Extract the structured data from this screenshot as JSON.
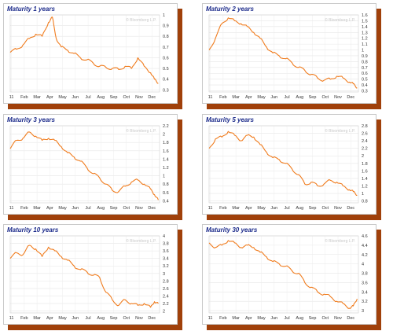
{
  "chart_data": [
    {
      "type": "line",
      "title": "Maturity 1 years",
      "watermark": "© Bloomberg L.P.",
      "color": "#f07c1e",
      "xticks": [
        "11",
        "Feb",
        "Mar",
        "Apr",
        "May",
        "Jun",
        "Jul",
        "Aug",
        "Sep",
        "Oct",
        "Nov",
        "Dec"
      ],
      "yticks": [
        0.3,
        0.4,
        0.5,
        0.6,
        0.7,
        0.8,
        0.9,
        1
      ],
      "ylim": [
        0.28,
        1.0
      ],
      "x": [
        0,
        0.5,
        1,
        1.5,
        2,
        2.5,
        3,
        3.3,
        3.6,
        4,
        4.5,
        5,
        5.5,
        6,
        6.5,
        7,
        7.5,
        8,
        8.5,
        9,
        9.5,
        10,
        10.5,
        11,
        11.3,
        11.6
      ],
      "y": [
        0.65,
        0.68,
        0.72,
        0.78,
        0.82,
        0.8,
        0.93,
        0.98,
        0.78,
        0.7,
        0.67,
        0.64,
        0.6,
        0.58,
        0.55,
        0.52,
        0.51,
        0.5,
        0.49,
        0.52,
        0.5,
        0.6,
        0.52,
        0.46,
        0.4,
        0.36
      ]
    },
    {
      "type": "line",
      "title": "Maturity 2 years",
      "watermark": "© Bloomberg L.P.",
      "color": "#f07c1e",
      "xticks": [
        "11",
        "Feb",
        "Mar",
        "Apr",
        "May",
        "Jun",
        "Jul",
        "Aug",
        "Sep",
        "Oct",
        "Nov",
        "Dec"
      ],
      "yticks": [
        0.3,
        0.4,
        0.5,
        0.6,
        0.7,
        0.8,
        0.9,
        1,
        1.1,
        1.2,
        1.3,
        1.4,
        1.5,
        1.6
      ],
      "ylim": [
        0.28,
        1.6
      ],
      "x": [
        0,
        0.5,
        1,
        1.5,
        2,
        2.5,
        3,
        3.5,
        4,
        4.5,
        5,
        5.5,
        6,
        6.5,
        7,
        7.5,
        8,
        8.5,
        9,
        9.5,
        10,
        10.5,
        11,
        11.3,
        11.6
      ],
      "y": [
        1.0,
        1.2,
        1.45,
        1.55,
        1.5,
        1.45,
        1.4,
        1.3,
        1.2,
        1.05,
        0.95,
        0.9,
        0.85,
        0.78,
        0.7,
        0.65,
        0.58,
        0.52,
        0.48,
        0.5,
        0.55,
        0.52,
        0.45,
        0.42,
        0.35
      ]
    },
    {
      "type": "line",
      "title": "Maturity 3 years",
      "watermark": "© Bloomberg L.P.",
      "color": "#f07c1e",
      "xticks": [
        "11",
        "Feb",
        "Mar",
        "Apr",
        "May",
        "Jun",
        "Jul",
        "Aug",
        "Sep",
        "Oct",
        "Nov",
        "Dec"
      ],
      "yticks": [
        0.4,
        0.6,
        0.8,
        1,
        1.2,
        1.4,
        1.6,
        1.8,
        2,
        2.2
      ],
      "ylim": [
        0.35,
        2.2
      ],
      "x": [
        0,
        0.5,
        1,
        1.5,
        2,
        2.5,
        3,
        3.5,
        4,
        4.5,
        5,
        5.5,
        6,
        6.5,
        7,
        7.5,
        8,
        8.5,
        9,
        9.5,
        10,
        10.5,
        11,
        11.3,
        11.6
      ],
      "y": [
        1.65,
        1.85,
        1.9,
        2.05,
        1.95,
        1.85,
        1.9,
        1.85,
        1.7,
        1.55,
        1.45,
        1.35,
        1.2,
        1.05,
        0.95,
        0.8,
        0.65,
        0.62,
        0.75,
        0.85,
        0.9,
        0.8,
        0.68,
        0.55,
        0.42
      ]
    },
    {
      "type": "line",
      "title": "Maturity 5 years",
      "watermark": "© Bloomberg L.P.",
      "color": "#f07c1e",
      "xticks": [
        "11",
        "Feb",
        "Mar",
        "Apr",
        "May",
        "Jun",
        "Jul",
        "Aug",
        "Sep",
        "Oct",
        "Nov",
        "Dec"
      ],
      "yticks": [
        0.8,
        1,
        1.2,
        1.4,
        1.6,
        1.8,
        2,
        2.2,
        2.4,
        2.6,
        2.8
      ],
      "ylim": [
        0.75,
        2.8
      ],
      "x": [
        0,
        0.5,
        1,
        1.5,
        2,
        2.5,
        3,
        3.5,
        4,
        4.5,
        5,
        5.5,
        6,
        6.5,
        7,
        7.5,
        8,
        8.5,
        9,
        9.5,
        10,
        10.5,
        11,
        11.3,
        11.6
      ],
      "y": [
        2.2,
        2.45,
        2.5,
        2.65,
        2.55,
        2.4,
        2.55,
        2.5,
        2.3,
        2.1,
        1.95,
        1.9,
        1.8,
        1.65,
        1.5,
        1.25,
        1.3,
        1.2,
        1.25,
        1.35,
        1.3,
        1.2,
        1.1,
        1.05,
        0.95
      ]
    },
    {
      "type": "line",
      "title": "Maturity 10 years",
      "watermark": "© Bloomberg L.P.",
      "color": "#f07c1e",
      "xticks": [
        "11",
        "Feb",
        "Mar",
        "Apr",
        "May",
        "Jun",
        "Jul",
        "Aug",
        "Sep",
        "Oct",
        "Nov",
        "Dec"
      ],
      "yticks": [
        2,
        2.2,
        2.4,
        2.6,
        2.8,
        3,
        3.2,
        3.4,
        3.6,
        3.8,
        4
      ],
      "ylim": [
        1.95,
        4.0
      ],
      "x": [
        0,
        0.5,
        1,
        1.5,
        2,
        2.5,
        3,
        3.5,
        4,
        4.5,
        5,
        5.5,
        6,
        6.5,
        7,
        7.5,
        8,
        8.5,
        9,
        9.5,
        10,
        10.5,
        11,
        11.3,
        11.6
      ],
      "y": [
        3.4,
        3.55,
        3.5,
        3.75,
        3.65,
        3.45,
        3.7,
        3.6,
        3.45,
        3.35,
        3.2,
        3.1,
        3.05,
        2.95,
        2.9,
        2.5,
        2.3,
        2.15,
        2.3,
        2.2,
        2.15,
        2.2,
        2.1,
        2.25,
        2.2
      ]
    },
    {
      "type": "line",
      "title": "Maturity 30 years",
      "watermark": "© Bloomberg L.P.",
      "color": "#f07c1e",
      "xticks": [
        "11",
        "Feb",
        "Mar",
        "Apr",
        "May",
        "Jun",
        "Jul",
        "Aug",
        "Sep",
        "Oct",
        "Nov",
        "Dec"
      ],
      "yticks": [
        3,
        3.2,
        3.4,
        3.6,
        3.8,
        4,
        4.2,
        4.4,
        4.6
      ],
      "ylim": [
        2.95,
        4.6
      ],
      "x": [
        0,
        0.5,
        1,
        1.5,
        2,
        2.5,
        3,
        3.5,
        4,
        4.5,
        5,
        5.5,
        6,
        6.5,
        7,
        7.5,
        8,
        8.5,
        9,
        9.5,
        10,
        10.5,
        11,
        11.3,
        11.6
      ],
      "y": [
        4.45,
        4.35,
        4.4,
        4.5,
        4.45,
        4.35,
        4.4,
        4.35,
        4.25,
        4.15,
        4.05,
        4.0,
        3.95,
        3.85,
        3.8,
        3.6,
        3.5,
        3.4,
        3.35,
        3.3,
        3.2,
        3.15,
        3.05,
        3.1,
        3.25
      ]
    }
  ]
}
